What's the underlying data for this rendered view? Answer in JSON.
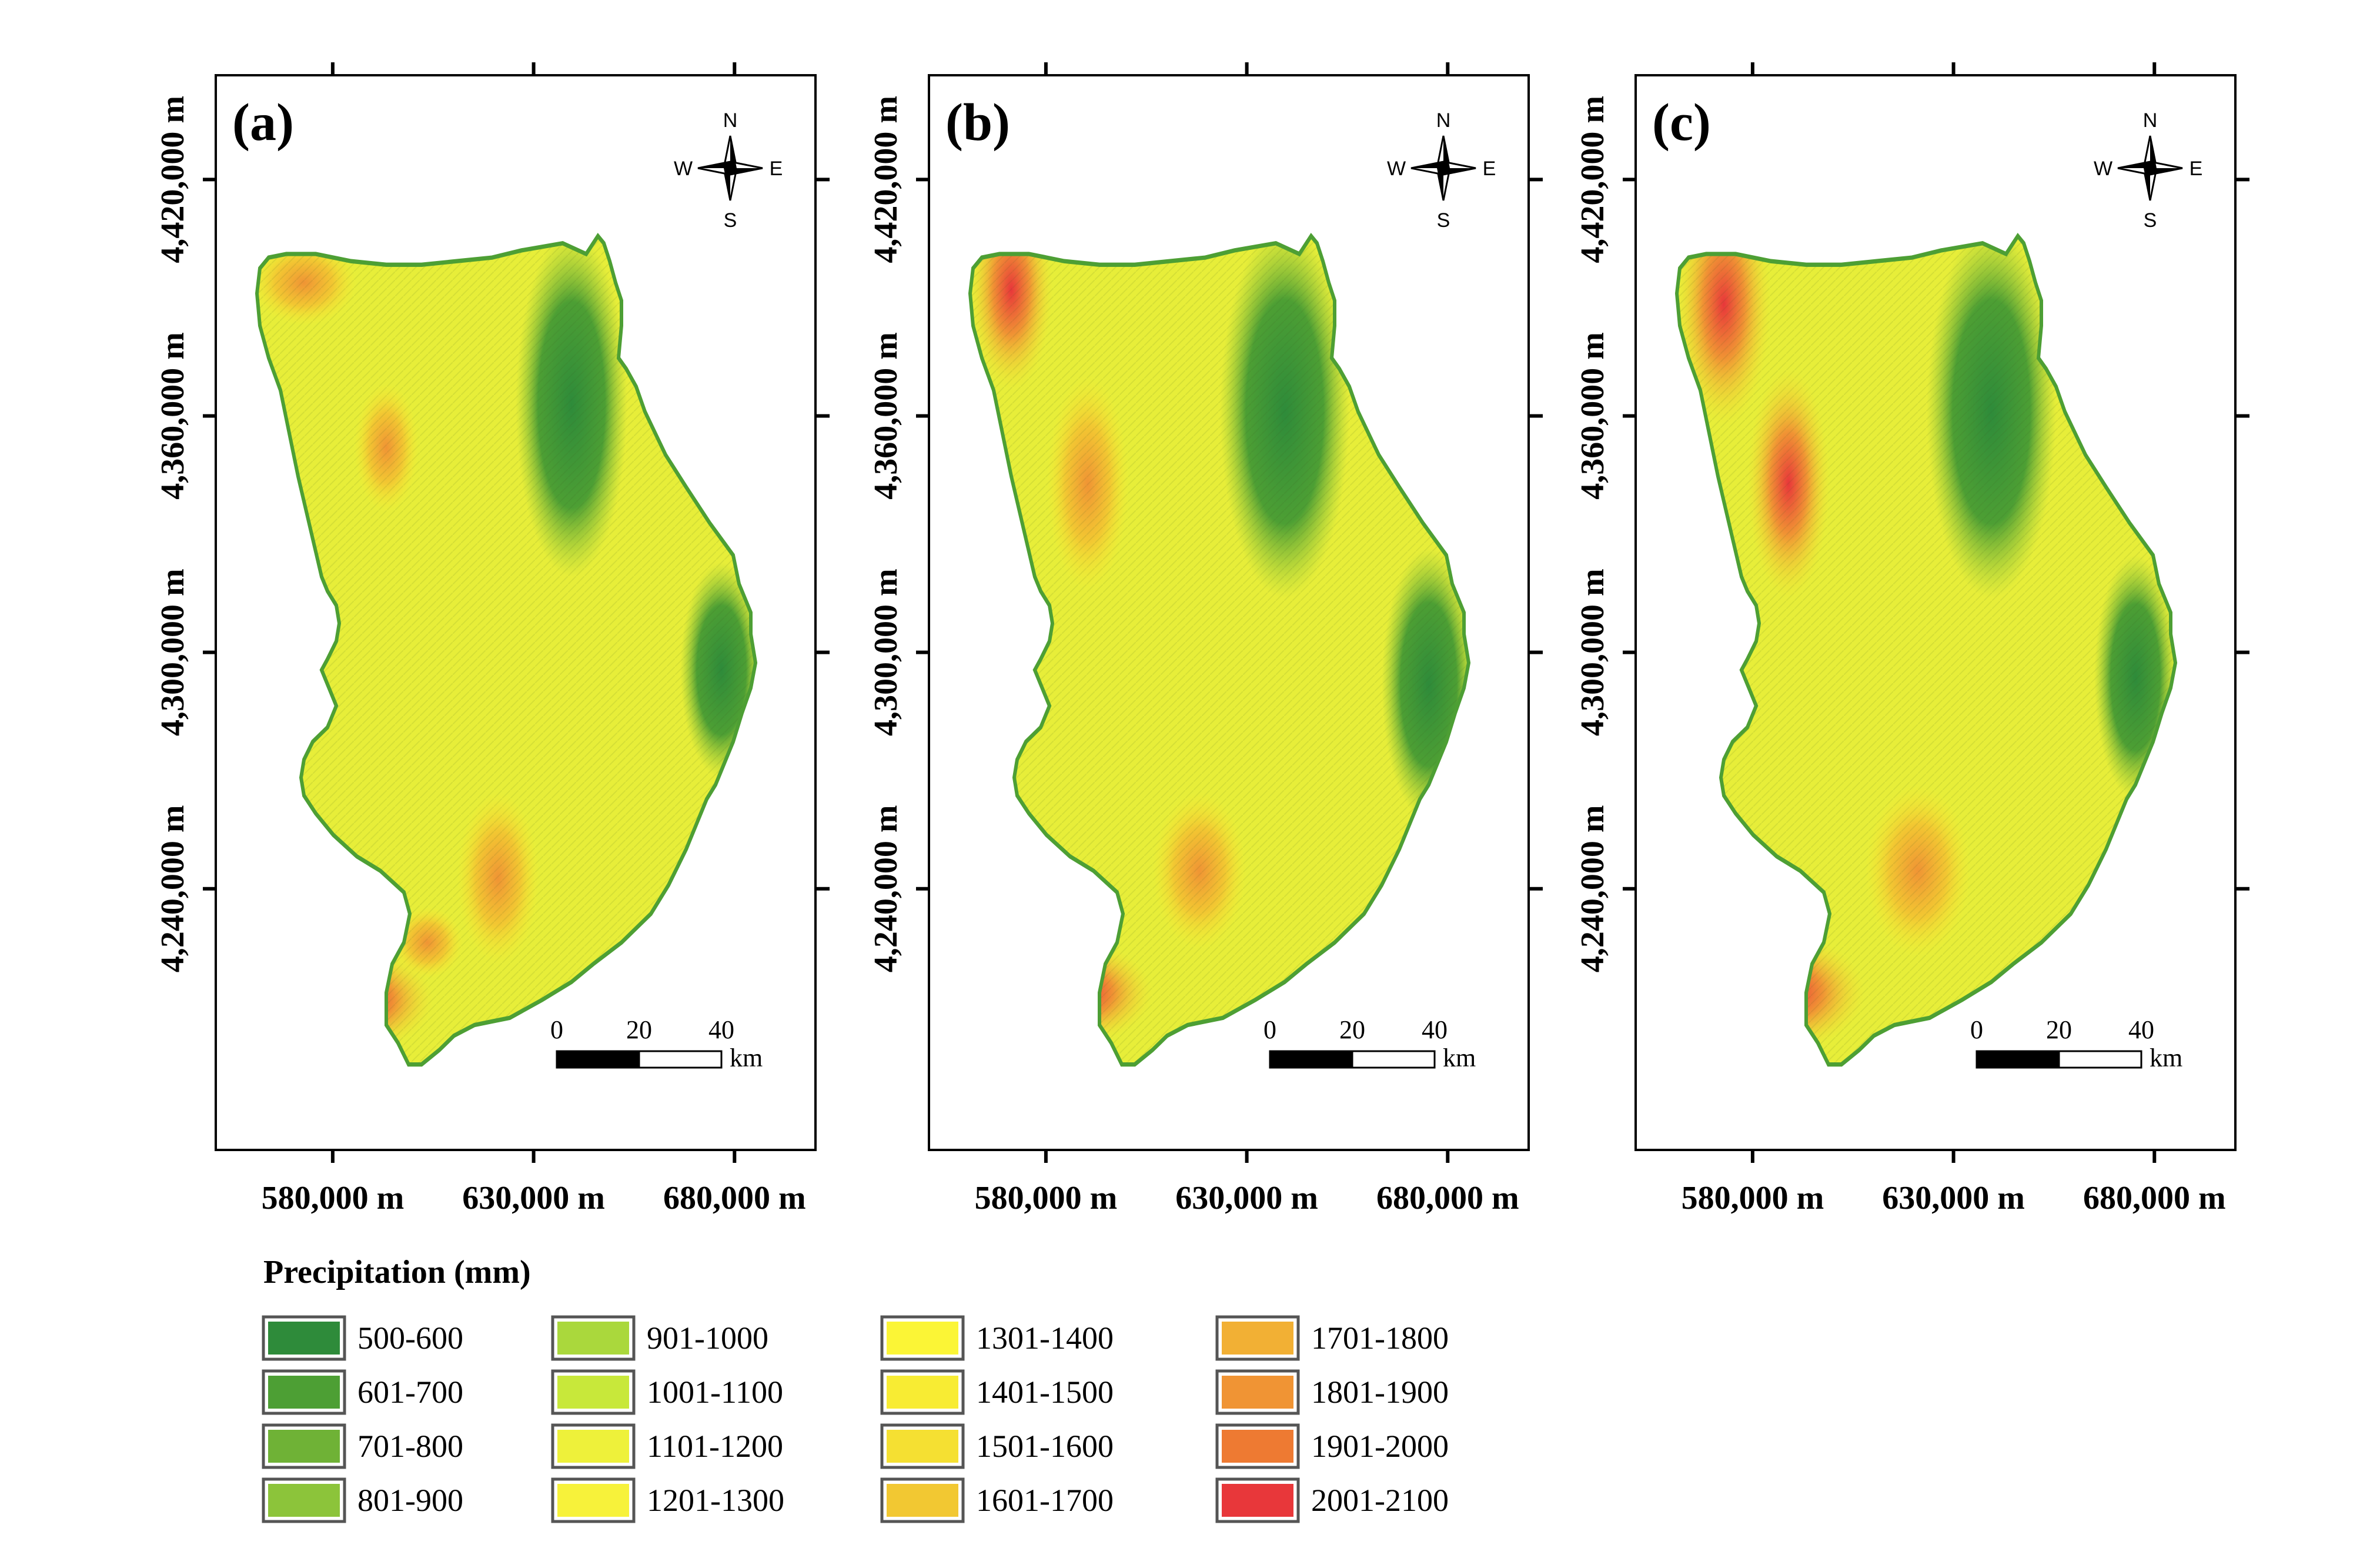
{
  "panels": [
    {
      "label": "(a)"
    },
    {
      "label": "(b)"
    },
    {
      "label": "(c)"
    }
  ],
  "axes": {
    "x_ticks": [
      "580,000 m",
      "630,000 m",
      "680,000 m"
    ],
    "y_ticks": [
      "4,240,000 m",
      "4,300,000 m",
      "4,360,000 m",
      "4,420,000 m"
    ]
  },
  "compass": {
    "n": "N",
    "s": "S",
    "e": "E",
    "w": "W"
  },
  "scale_bar": {
    "ticks": [
      "0",
      "20",
      "40"
    ],
    "unit": "km"
  },
  "legend": {
    "title": "Precipitation (mm)",
    "classes": [
      {
        "range": "500-600",
        "color": "#2e8b3a"
      },
      {
        "range": "601-700",
        "color": "#4d9f34"
      },
      {
        "range": "701-800",
        "color": "#6fb236"
      },
      {
        "range": "801-900",
        "color": "#8cc43a"
      },
      {
        "range": "901-1000",
        "color": "#aad83c"
      },
      {
        "range": "1001-1100",
        "color": "#c8e83a"
      },
      {
        "range": "1101-1200",
        "color": "#eef13a"
      },
      {
        "range": "1201-1300",
        "color": "#f7f23a"
      },
      {
        "range": "1301-1400",
        "color": "#fbf536"
      },
      {
        "range": "1401-1500",
        "color": "#f8ec33"
      },
      {
        "range": "1501-1600",
        "color": "#f5e032"
      },
      {
        "range": "1601-1700",
        "color": "#f2c832"
      },
      {
        "range": "1701-1800",
        "color": "#f2b034"
      },
      {
        "range": "1801-1900",
        "color": "#f09434"
      },
      {
        "range": "1901-2000",
        "color": "#ee7a32"
      },
      {
        "range": "2001-2100",
        "color": "#e8373a"
      }
    ]
  }
}
